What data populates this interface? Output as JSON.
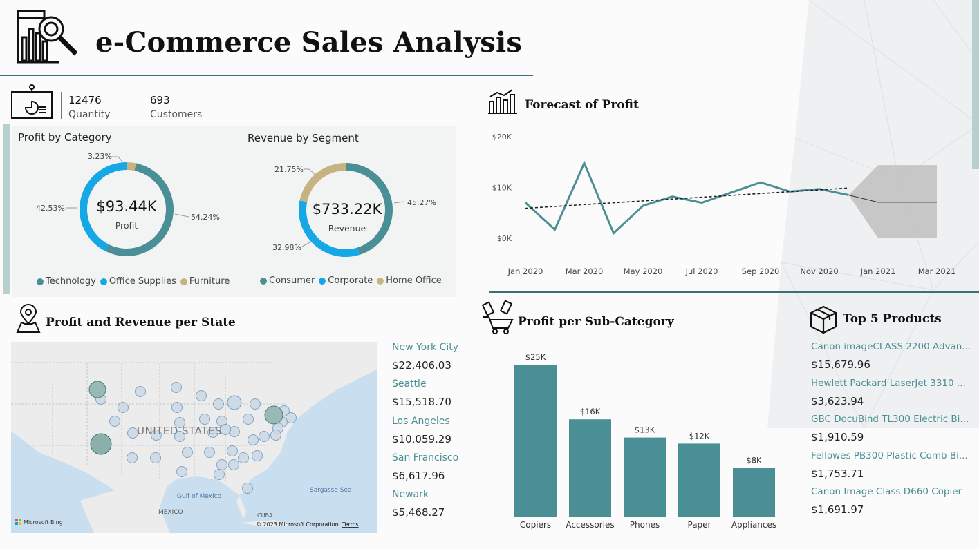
{
  "header": {
    "title": "e-Commerce Sales Analysis"
  },
  "kpis": [
    {
      "value": "12476",
      "label": "Quantity"
    },
    {
      "value": "693",
      "label": "Customers"
    }
  ],
  "colors": {
    "teal": "#4a8f96",
    "blue": "#16a7e6",
    "tan": "#c7b382",
    "rule": "#3d6f76",
    "forecast_band": "#c4c4c4"
  },
  "icons": [
    "analytics-magnifier-icon",
    "presentation-board-icon",
    "bar-chart-icon",
    "location-pin-map-icon",
    "shopping-cart-tags-icon",
    "package-box-icon"
  ],
  "chart_data": [
    {
      "type": "pie",
      "variant": "donut",
      "title": "Profit by Category",
      "center_value": "$93.44K",
      "center_label": "Profit",
      "slices": [
        {
          "name": "Technology",
          "value": 54.24,
          "label": "54.24%",
          "color": "#4a8f96"
        },
        {
          "name": "Office Supplies",
          "value": 42.53,
          "label": "42.53%",
          "color": "#16a7e6"
        },
        {
          "name": "Furniture",
          "value": 3.23,
          "label": "3.23%",
          "color": "#c7b382"
        }
      ],
      "legend_position": "bottom"
    },
    {
      "type": "pie",
      "variant": "donut",
      "title": "Revenue by Segment",
      "center_value": "$733.22K",
      "center_label": "Revenue",
      "slices": [
        {
          "name": "Consumer",
          "value": 45.27,
          "label": "45.27%",
          "color": "#4a8f96"
        },
        {
          "name": "Corporate",
          "value": 32.98,
          "label": "32.98%",
          "color": "#16a7e6"
        },
        {
          "name": "Home Office",
          "value": 21.75,
          "label": "21.75%",
          "color": "#c7b382"
        }
      ],
      "legend_position": "bottom"
    },
    {
      "type": "line",
      "title": "Forecast of Profit",
      "x_ticks": [
        "Jan 2020",
        "Mar 2020",
        "May 2020",
        "Jul 2020",
        "Sep 2020",
        "Nov 2020",
        "Jan 2021",
        "Mar 2021"
      ],
      "y_ticks": [
        "$0K",
        "$10K",
        "$20K"
      ],
      "ylim": [
        0,
        20000
      ],
      "series": [
        {
          "kind": "actual",
          "x": [
            "2020-01",
            "2020-02",
            "2020-03",
            "2020-04",
            "2020-05",
            "2020-06",
            "2020-07",
            "2020-08",
            "2020-09",
            "2020-10",
            "2020-11",
            "2020-12"
          ],
          "values": [
            7000,
            1700,
            14800,
            1000,
            6400,
            8200,
            7000,
            9000,
            11000,
            9200,
            9700,
            8500
          ]
        },
        {
          "kind": "trend",
          "x": [
            "2020-01",
            "2020-12"
          ],
          "values": [
            5900,
            9900
          ]
        },
        {
          "kind": "forecast",
          "x": [
            "2020-12",
            "2021-01",
            "2021-02",
            "2021-03"
          ],
          "values": [
            8500,
            7100,
            7100,
            7100
          ],
          "upper": [
            8500,
            14400,
            14400,
            14400
          ],
          "lower": [
            8500,
            0,
            0,
            0
          ]
        }
      ],
      "grid": false
    },
    {
      "type": "bar",
      "title": "Profit per Sub-Category",
      "categories": [
        "Copiers",
        "Accessories",
        "Phones",
        "Paper",
        "Appliances"
      ],
      "values": [
        25,
        16,
        13,
        12,
        8
      ],
      "data_labels": [
        "$25K",
        "$16K",
        "$13K",
        "$12K",
        "$8K"
      ],
      "unit": "K",
      "ylim": [
        0,
        25
      ]
    }
  ],
  "map": {
    "title": "Profit and Revenue per State",
    "labels": {
      "country": "UNITED STATES",
      "gulf": "Gulf of Mexico",
      "sea": "Sargasso Sea",
      "mexico": "MEXICO",
      "cuba": "CUBA"
    },
    "attribution": "© 2023 Microsoft Corporation",
    "terms": "Terms",
    "bing": "Microsoft Bing"
  },
  "states": [
    {
      "name": "New York City",
      "value": "$22,406.03"
    },
    {
      "name": "Seattle",
      "value": "$15,518.70"
    },
    {
      "name": "Los Angeles",
      "value": "$10,059.29"
    },
    {
      "name": "San Francisco",
      "value": "$6,617.96"
    },
    {
      "name": "Newark",
      "value": "$5,468.27"
    }
  ],
  "top_products": {
    "title": "Top 5 Products",
    "items": [
      {
        "name": "Canon imageCLASS 2200 Advan...",
        "value": "$15,679.96"
      },
      {
        "name": "Hewlett Packard LaserJet 3310 ...",
        "value": "$3,623.94"
      },
      {
        "name": "GBC DocuBind TL300 Electric Bi...",
        "value": "$1,910.59"
      },
      {
        "name": "Fellowes PB300 Plastic Comb Bi...",
        "value": "$1,753.71"
      },
      {
        "name": "Canon Image Class D660 Copier",
        "value": "$1,691.97"
      }
    ]
  }
}
